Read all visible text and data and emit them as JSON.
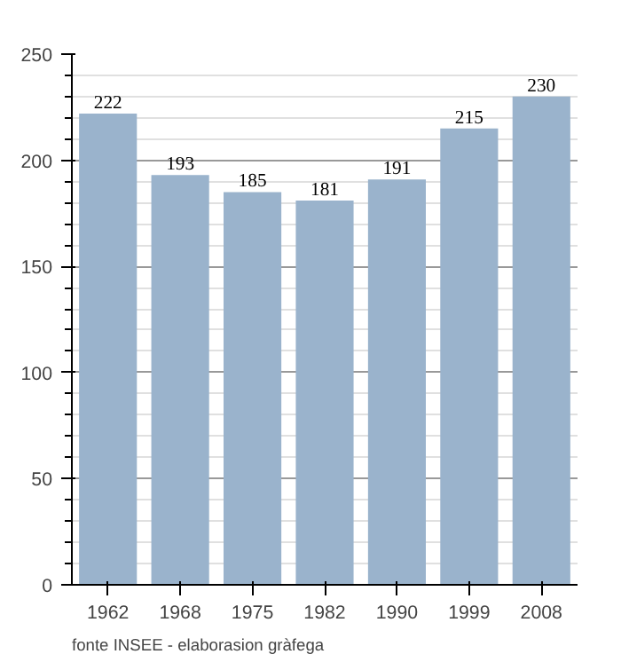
{
  "chart_data": {
    "type": "bar",
    "categories": [
      "1962",
      "1968",
      "1975",
      "1982",
      "1990",
      "1999",
      "2008"
    ],
    "values": [
      222,
      193,
      185,
      181,
      191,
      215,
      230
    ],
    "color": "#9ab3cc",
    "data_labels": true,
    "ylim": [
      0,
      250
    ],
    "yticks": [
      0,
      {
        "value": 10,
        "label": null
      },
      {
        "value": 20,
        "label": null
      },
      {
        "value": 30,
        "label": null
      },
      {
        "value": 40,
        "label": null
      },
      50,
      {
        "value": 60,
        "label": null
      },
      {
        "value": 70,
        "label": null
      },
      {
        "value": 80,
        "label": null
      },
      {
        "value": 90,
        "label": null
      },
      100,
      {
        "value": 110,
        "label": null
      },
      {
        "value": 120,
        "label": null
      },
      {
        "value": 130,
        "label": null
      },
      {
        "value": 140,
        "label": null
      },
      150,
      {
        "value": 160,
        "label": null
      },
      {
        "value": 170,
        "label": null
      },
      {
        "value": 180,
        "label": null
      },
      {
        "value": 190,
        "label": null
      },
      200,
      {
        "value": 210,
        "label": null
      },
      {
        "value": 220,
        "label": null
      },
      {
        "value": 230,
        "label": null
      },
      {
        "value": 240,
        "label": null
      },
      250
    ],
    "grid": "y",
    "annotations": [
      "fonte INSEE - elaborasion gràfega"
    ]
  }
}
